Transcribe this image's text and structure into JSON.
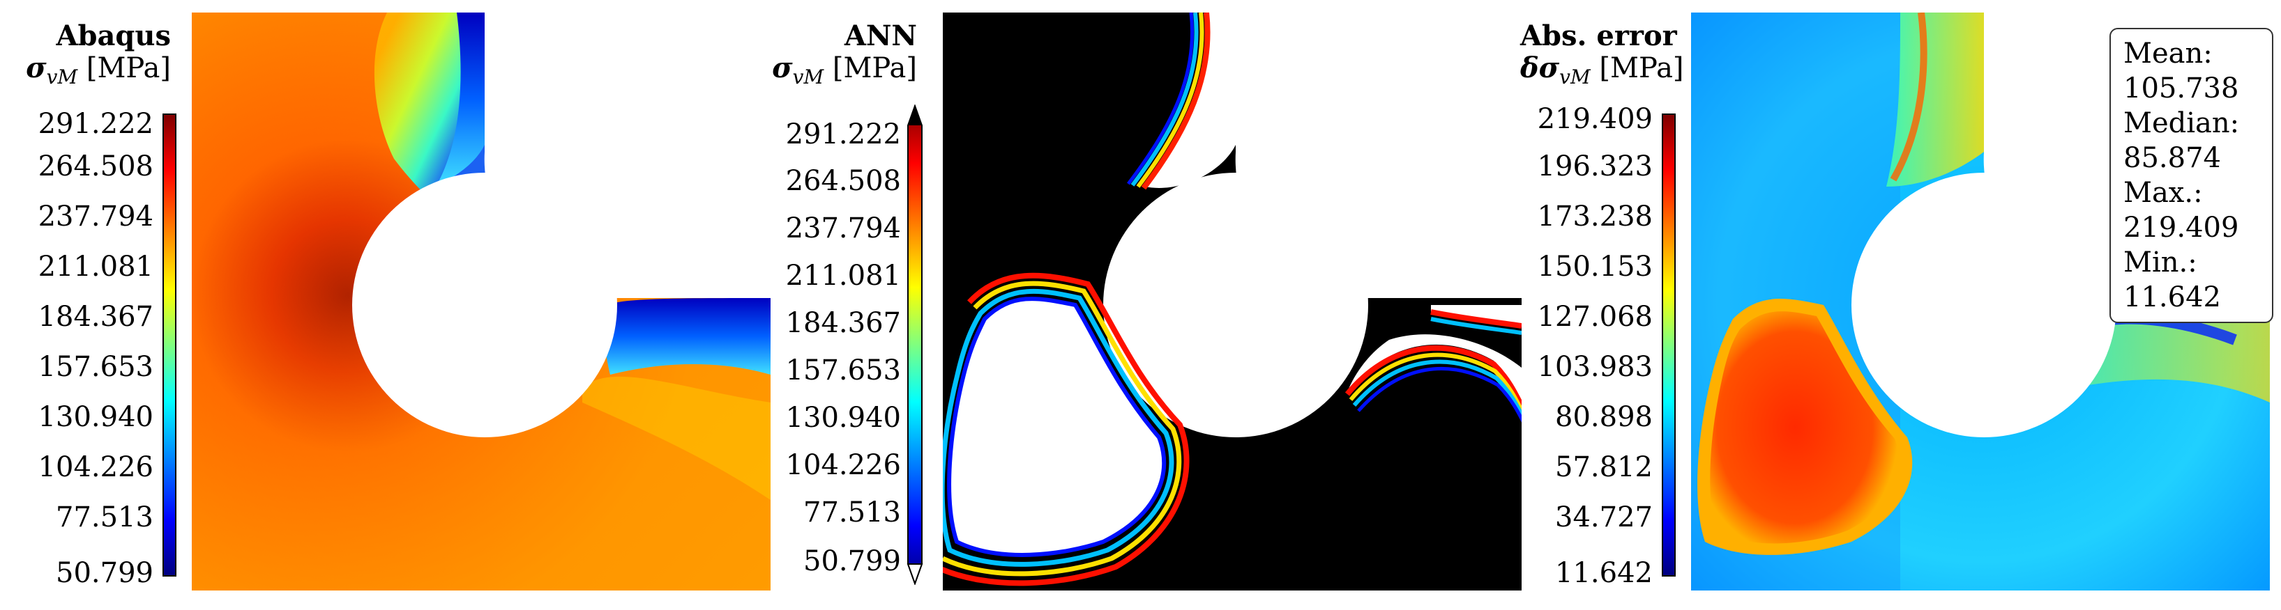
{
  "panels": [
    {
      "title": "Abaqus",
      "subtitle_symbol": "σ",
      "subtitle_sub": "vM",
      "subtitle_unit": "[MPa]",
      "ticks": [
        "291.222",
        "264.508",
        "237.794",
        "211.081",
        "184.367",
        "157.653",
        "130.940",
        "104.226",
        "77.513",
        "50.799"
      ]
    },
    {
      "title": "ANN",
      "subtitle_symbol": "σ",
      "subtitle_sub": "vM",
      "subtitle_unit": "[MPa]",
      "ticks": [
        "291.222",
        "264.508",
        "237.794",
        "211.081",
        "184.367",
        "157.653",
        "130.940",
        "104.226",
        "77.513",
        "50.799"
      ]
    },
    {
      "title": "Abs. error",
      "subtitle_symbol": "δσ",
      "subtitle_sub": "vM",
      "subtitle_unit": "[MPa]",
      "ticks": [
        "219.409",
        "196.323",
        "173.238",
        "150.153",
        "127.068",
        "103.983",
        "80.898",
        "57.812",
        "34.727",
        "11.642"
      ]
    }
  ],
  "stats": {
    "mean": "Mean: 105.738",
    "median": "Median: 85.874",
    "max": "Max.: 219.409",
    "min": "Min.: 11.642"
  },
  "colormap": [
    "#00007f",
    "#0000ff",
    "#007fff",
    "#00ffff",
    "#7fff7f",
    "#ffff00",
    "#ff7f00",
    "#ff0000",
    "#7f0000"
  ]
}
